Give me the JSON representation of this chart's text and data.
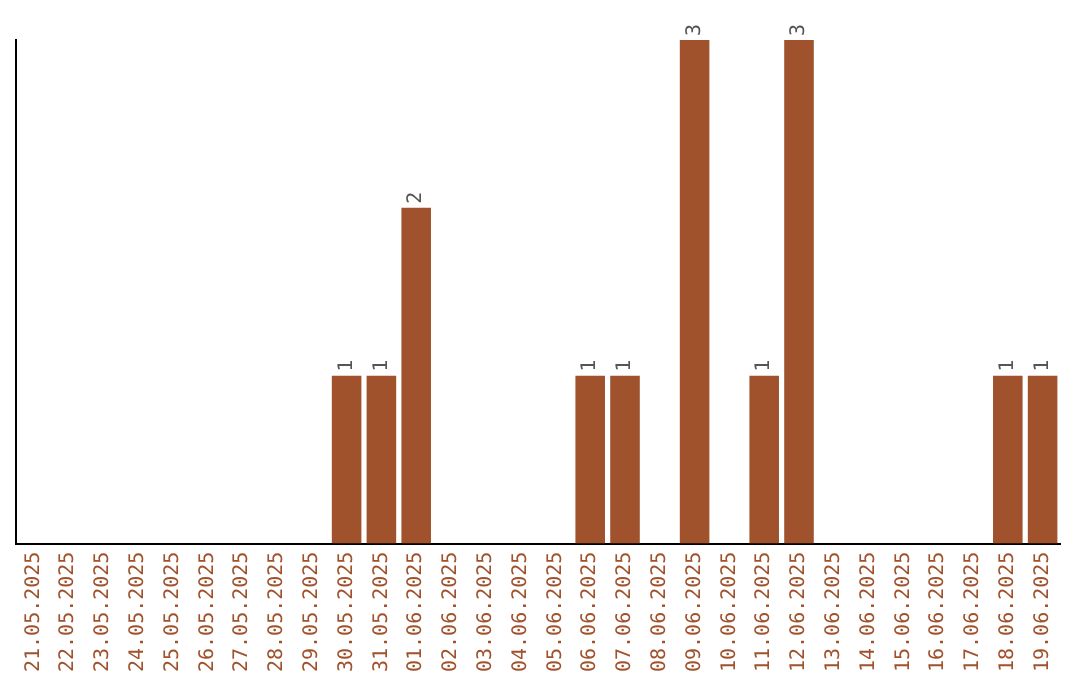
{
  "chart_data": {
    "type": "bar",
    "categories": [
      "21.05.2025",
      "22.05.2025",
      "23.05.2025",
      "24.05.2025",
      "25.05.2025",
      "26.05.2025",
      "27.05.2025",
      "28.05.2025",
      "29.05.2025",
      "30.05.2025",
      "31.05.2025",
      "01.06.2025",
      "02.06.2025",
      "03.06.2025",
      "04.06.2025",
      "05.06.2025",
      "06.06.2025",
      "07.06.2025",
      "08.06.2025",
      "09.06.2025",
      "10.06.2025",
      "11.06.2025",
      "12.06.2025",
      "13.06.2025",
      "14.06.2025",
      "15.06.2025",
      "16.06.2025",
      "17.06.2025",
      "18.06.2025",
      "19.06.2025"
    ],
    "values": [
      0,
      0,
      0,
      0,
      0,
      0,
      0,
      0,
      0,
      1,
      1,
      2,
      0,
      0,
      0,
      0,
      1,
      1,
      0,
      3,
      0,
      1,
      3,
      0,
      0,
      0,
      0,
      0,
      1,
      1
    ],
    "value_labels": [
      null,
      null,
      null,
      null,
      null,
      null,
      null,
      null,
      null,
      "1",
      "1",
      "2",
      null,
      null,
      null,
      null,
      "1",
      "1",
      null,
      "3",
      null,
      "1",
      "3",
      null,
      null,
      null,
      null,
      null,
      "1",
      "1"
    ],
    "color": "#a0522d",
    "ylim": [
      0,
      3
    ],
    "tick_labels": "x",
    "grid": false,
    "legend": false
  }
}
